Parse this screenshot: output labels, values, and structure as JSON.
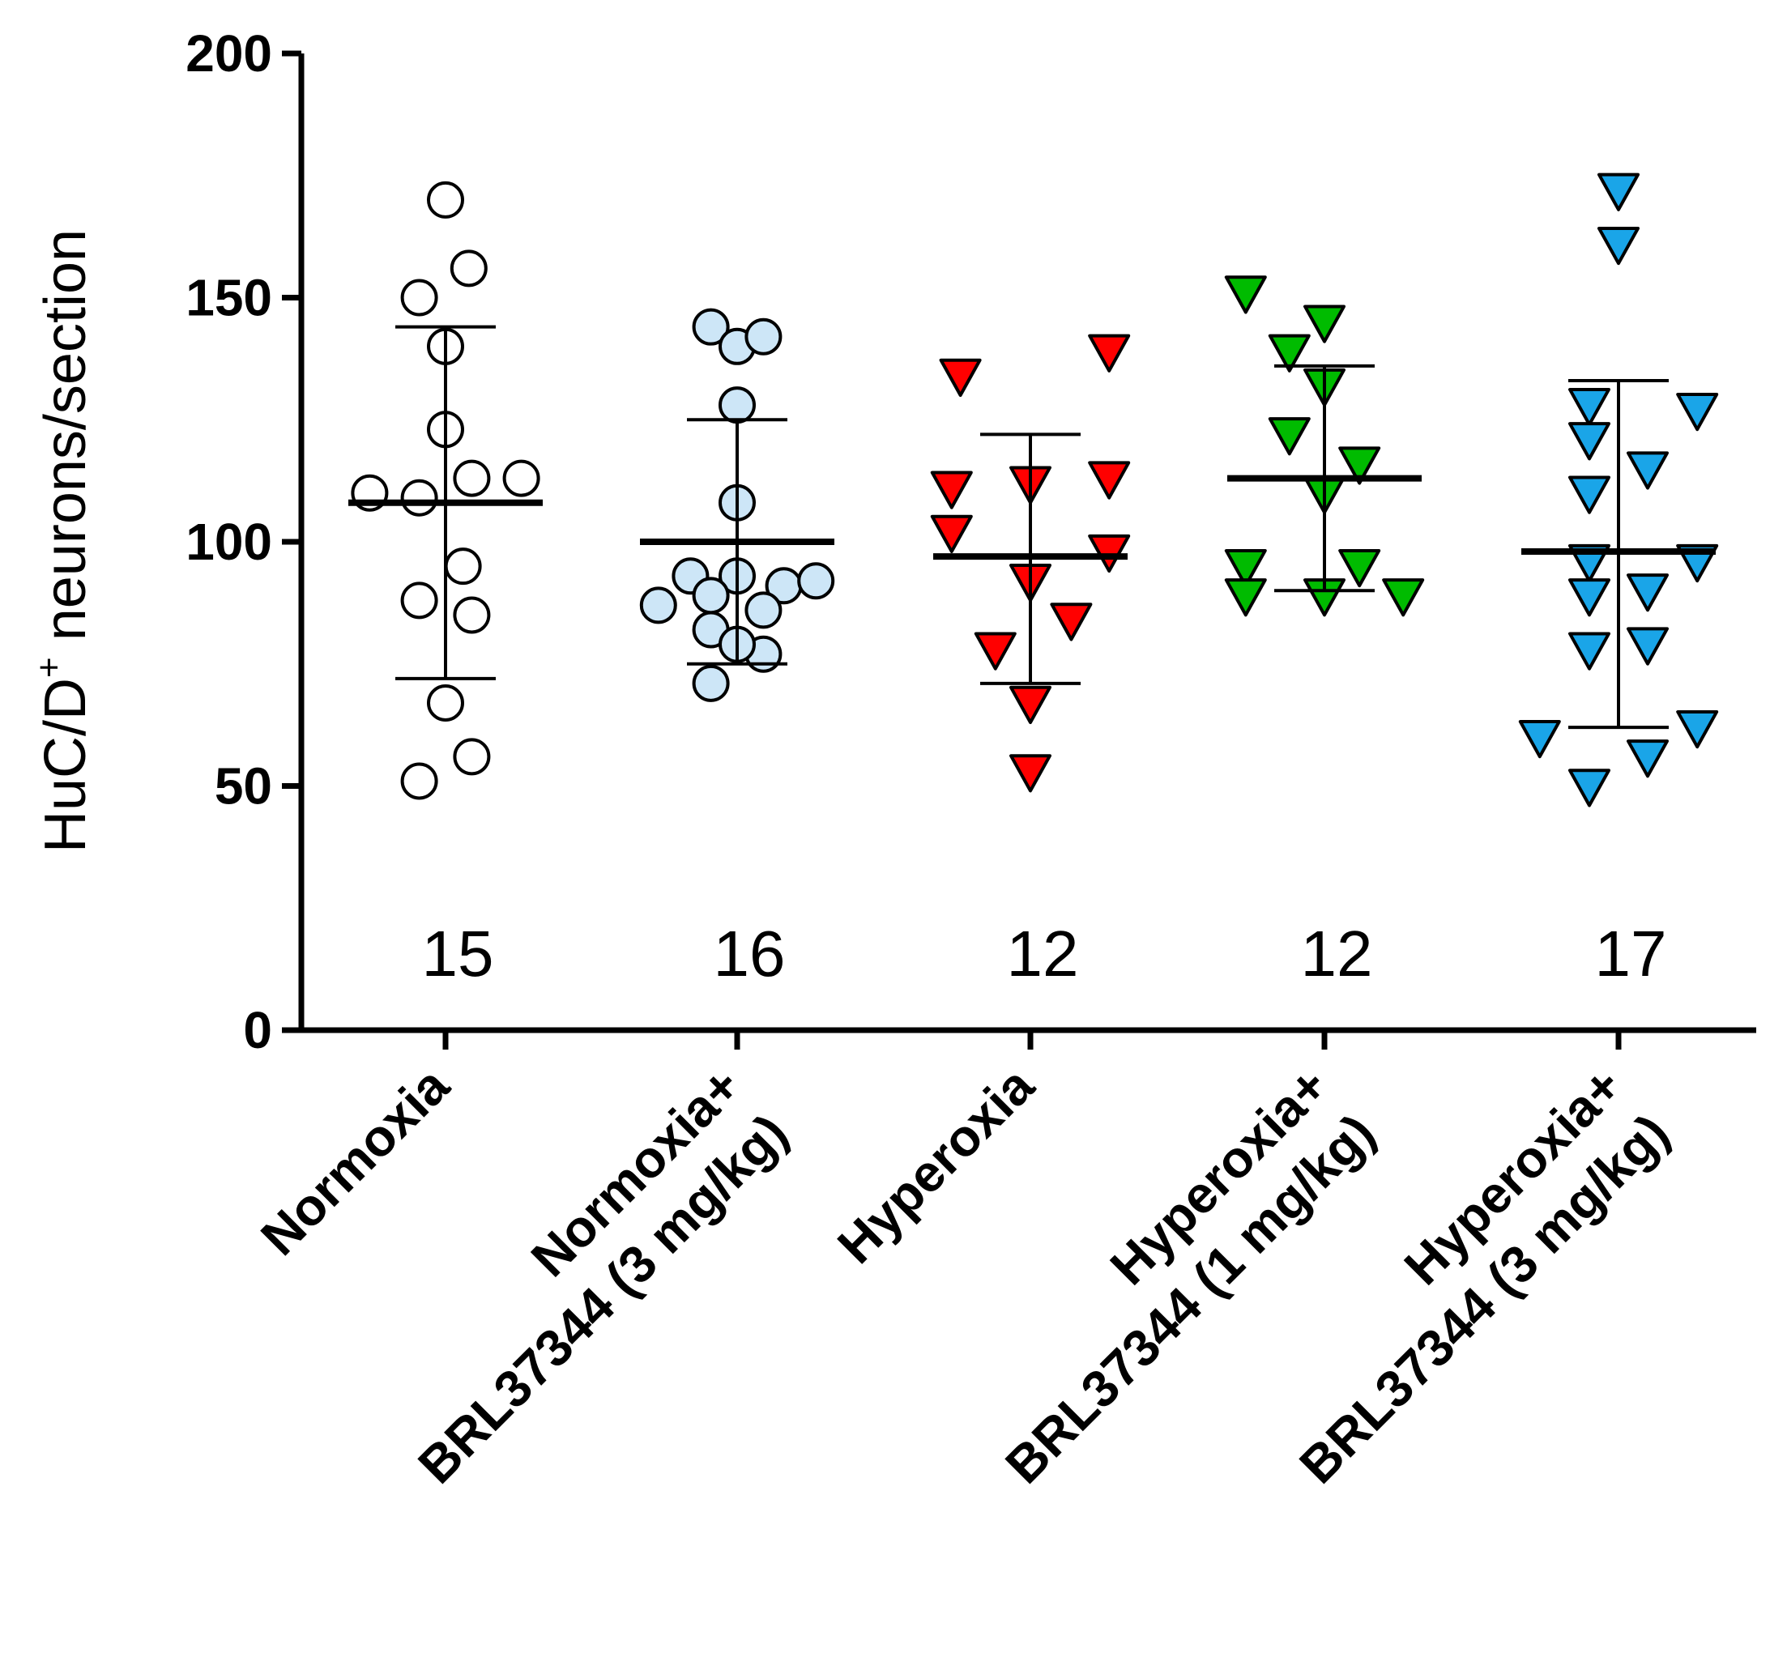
{
  "chart_data": {
    "type": "scatter",
    "title": "",
    "ylabel": "HuC/D",
    "ylabel_superscript": "+",
    "ylabel_suffix": " neurons/section",
    "xlabel": "",
    "ylim": [
      0,
      200
    ],
    "yticks": [
      "0",
      "50",
      "100",
      "150",
      "200"
    ],
    "grid": false,
    "groups": [
      {
        "lines": [
          "Normoxia"
        ],
        "n": "15",
        "marker": "circle",
        "color": "#ffffff",
        "mean": 108,
        "sd_low": 72,
        "sd_high": 144,
        "points": [
          {
            "dx": 0.0,
            "y": 170
          },
          {
            "dx": 0.08,
            "y": 156
          },
          {
            "dx": -0.09,
            "y": 150
          },
          {
            "dx": 0.0,
            "y": 140
          },
          {
            "dx": 0.0,
            "y": 123
          },
          {
            "dx": -0.26,
            "y": 110
          },
          {
            "dx": -0.09,
            "y": 109
          },
          {
            "dx": 0.09,
            "y": 113
          },
          {
            "dx": 0.26,
            "y": 113
          },
          {
            "dx": 0.06,
            "y": 95
          },
          {
            "dx": -0.09,
            "y": 88
          },
          {
            "dx": 0.09,
            "y": 85
          },
          {
            "dx": 0.0,
            "y": 67
          },
          {
            "dx": 0.09,
            "y": 56
          },
          {
            "dx": -0.09,
            "y": 51
          }
        ]
      },
      {
        "lines": [
          "Normoxia+",
          "BRL37344 (3 mg/kg)"
        ],
        "n": "16",
        "marker": "circle",
        "color": "#cde6f7",
        "mean": 100,
        "sd_low": 75,
        "sd_high": 125,
        "points": [
          {
            "dx": -0.09,
            "y": 144
          },
          {
            "dx": 0.0,
            "y": 140
          },
          {
            "dx": 0.09,
            "y": 142
          },
          {
            "dx": 0.0,
            "y": 128
          },
          {
            "dx": 0.0,
            "y": 108
          },
          {
            "dx": -0.16,
            "y": 93
          },
          {
            "dx": 0.0,
            "y": 93
          },
          {
            "dx": 0.16,
            "y": 91
          },
          {
            "dx": 0.27,
            "y": 92
          },
          {
            "dx": -0.27,
            "y": 87
          },
          {
            "dx": -0.09,
            "y": 89
          },
          {
            "dx": 0.09,
            "y": 86
          },
          {
            "dx": -0.09,
            "y": 82
          },
          {
            "dx": 0.09,
            "y": 77
          },
          {
            "dx": 0.0,
            "y": 79
          },
          {
            "dx": -0.09,
            "y": 71
          }
        ]
      },
      {
        "lines": [
          "Hyperoxia"
        ],
        "n": "12",
        "marker": "triangle-down",
        "color": "#ff0000",
        "mean": 97,
        "sd_low": 71,
        "sd_high": 122,
        "points": [
          {
            "dx": -0.24,
            "y": 134
          },
          {
            "dx": 0.27,
            "y": 139
          },
          {
            "dx": -0.27,
            "y": 111
          },
          {
            "dx": 0.0,
            "y": 112
          },
          {
            "dx": 0.27,
            "y": 113
          },
          {
            "dx": -0.27,
            "y": 102
          },
          {
            "dx": 0.27,
            "y": 98
          },
          {
            "dx": 0.0,
            "y": 92
          },
          {
            "dx": 0.14,
            "y": 84
          },
          {
            "dx": -0.12,
            "y": 78
          },
          {
            "dx": 0.0,
            "y": 67
          },
          {
            "dx": 0.0,
            "y": 53
          }
        ]
      },
      {
        "lines": [
          "Hyperoxia+",
          "BRL37344 (1 mg/kg)"
        ],
        "n": "12",
        "marker": "triangle-down",
        "color": "#00bb00",
        "mean": 113,
        "sd_low": 90,
        "sd_high": 136,
        "points": [
          {
            "dx": -0.27,
            "y": 151
          },
          {
            "dx": 0.0,
            "y": 145
          },
          {
            "dx": -0.12,
            "y": 139
          },
          {
            "dx": 0.0,
            "y": 132
          },
          {
            "dx": -0.12,
            "y": 122
          },
          {
            "dx": 0.12,
            "y": 116
          },
          {
            "dx": 0.0,
            "y": 110
          },
          {
            "dx": -0.27,
            "y": 95
          },
          {
            "dx": 0.12,
            "y": 95
          },
          {
            "dx": -0.27,
            "y": 89
          },
          {
            "dx": 0.0,
            "y": 89
          },
          {
            "dx": 0.27,
            "y": 89
          }
        ]
      },
      {
        "lines": [
          "Hyperoxia+",
          "BRL37344 (3 mg/kg)"
        ],
        "n": "17",
        "marker": "triangle-down",
        "color": "#1aa5e8",
        "mean": 98,
        "sd_low": 62,
        "sd_high": 133,
        "points": [
          {
            "dx": 0.0,
            "y": 172
          },
          {
            "dx": 0.0,
            "y": 161
          },
          {
            "dx": -0.1,
            "y": 128
          },
          {
            "dx": 0.27,
            "y": 127
          },
          {
            "dx": -0.1,
            "y": 121
          },
          {
            "dx": 0.1,
            "y": 115
          },
          {
            "dx": -0.1,
            "y": 110
          },
          {
            "dx": -0.1,
            "y": 96
          },
          {
            "dx": 0.27,
            "y": 96
          },
          {
            "dx": -0.1,
            "y": 89
          },
          {
            "dx": 0.1,
            "y": 90
          },
          {
            "dx": -0.1,
            "y": 78
          },
          {
            "dx": 0.1,
            "y": 79
          },
          {
            "dx": -0.27,
            "y": 60
          },
          {
            "dx": 0.27,
            "y": 62
          },
          {
            "dx": 0.1,
            "y": 56
          },
          {
            "dx": -0.1,
            "y": 50
          }
        ]
      }
    ]
  }
}
